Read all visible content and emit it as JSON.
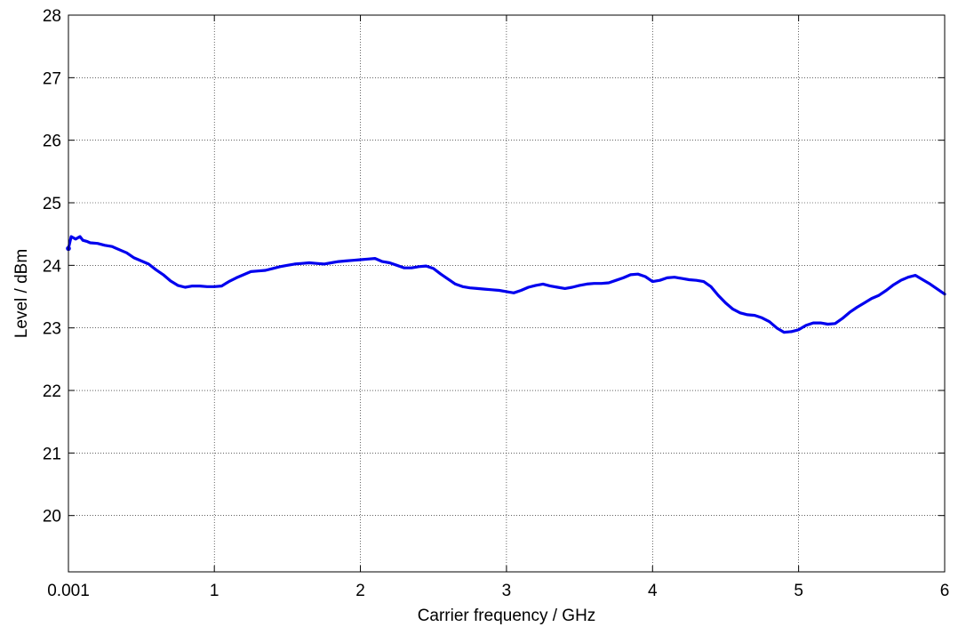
{
  "chart_data": {
    "type": "line",
    "xlabel": "Carrier frequency / GHz",
    "ylabel": "Level / dBm",
    "xlim": [
      0.001,
      6
    ],
    "ylim": [
      19.1,
      28
    ],
    "x_ticks": [
      0.001,
      1,
      2,
      3,
      4,
      5,
      6
    ],
    "x_tick_labels": [
      "0.001",
      "1",
      "2",
      "3",
      "4",
      "5",
      "6"
    ],
    "y_ticks": [
      20,
      21,
      22,
      23,
      24,
      25,
      26,
      27,
      28
    ],
    "y_tick_labels": [
      "20",
      "21",
      "22",
      "23",
      "24",
      "25",
      "26",
      "27",
      "28"
    ],
    "grid": true,
    "colors": {
      "line": "#0000ee",
      "grid": "#000000",
      "axis": "#000000"
    },
    "series": [
      {
        "x": [
          0.001,
          0.02,
          0.05,
          0.08,
          0.1,
          0.13,
          0.15,
          0.2,
          0.25,
          0.3,
          0.35,
          0.4,
          0.45,
          0.5,
          0.55,
          0.6,
          0.65,
          0.7,
          0.75,
          0.8,
          0.85,
          0.9,
          0.95,
          1.0,
          1.05,
          1.1,
          1.15,
          1.2,
          1.25,
          1.3,
          1.35,
          1.4,
          1.45,
          1.5,
          1.55,
          1.6,
          1.65,
          1.7,
          1.75,
          1.8,
          1.85,
          1.9,
          1.95,
          2.0,
          2.05,
          2.1,
          2.15,
          2.2,
          2.25,
          2.3,
          2.35,
          2.4,
          2.45,
          2.5,
          2.55,
          2.6,
          2.65,
          2.7,
          2.75,
          2.8,
          2.85,
          2.9,
          2.95,
          3.0,
          3.05,
          3.1,
          3.15,
          3.2,
          3.25,
          3.3,
          3.35,
          3.4,
          3.45,
          3.5,
          3.55,
          3.6,
          3.65,
          3.7,
          3.75,
          3.8,
          3.85,
          3.9,
          3.95,
          4.0,
          4.05,
          4.1,
          4.15,
          4.2,
          4.25,
          4.3,
          4.35,
          4.4,
          4.45,
          4.5,
          4.55,
          4.6,
          4.65,
          4.7,
          4.75,
          4.8,
          4.85,
          4.9,
          4.95,
          5.0,
          5.05,
          5.1,
          5.15,
          5.2,
          5.25,
          5.3,
          5.35,
          5.4,
          5.45,
          5.5,
          5.55,
          5.6,
          5.65,
          5.7,
          5.75,
          5.8,
          5.85,
          5.9,
          5.95,
          6.0
        ],
        "y": [
          24.27,
          24.46,
          24.42,
          24.46,
          24.4,
          24.38,
          24.36,
          24.35,
          24.32,
          24.3,
          24.25,
          24.2,
          24.12,
          24.07,
          24.02,
          23.93,
          23.85,
          23.75,
          23.68,
          23.65,
          23.67,
          23.67,
          23.66,
          23.66,
          23.67,
          23.74,
          23.8,
          23.85,
          23.9,
          23.91,
          23.92,
          23.95,
          23.98,
          24.0,
          24.02,
          24.03,
          24.04,
          24.03,
          24.02,
          24.04,
          24.06,
          24.07,
          24.08,
          24.09,
          24.1,
          24.11,
          24.06,
          24.04,
          24.0,
          23.96,
          23.96,
          23.98,
          23.99,
          23.95,
          23.86,
          23.78,
          23.7,
          23.66,
          23.64,
          23.63,
          23.62,
          23.61,
          23.6,
          23.58,
          23.56,
          23.6,
          23.65,
          23.68,
          23.7,
          23.67,
          23.65,
          23.63,
          23.65,
          23.68,
          23.7,
          23.71,
          23.71,
          23.72,
          23.76,
          23.8,
          23.85,
          23.86,
          23.82,
          23.74,
          23.76,
          23.8,
          23.81,
          23.79,
          23.77,
          23.76,
          23.74,
          23.66,
          23.52,
          23.4,
          23.3,
          23.24,
          23.21,
          23.2,
          23.16,
          23.1,
          23.0,
          22.93,
          22.94,
          22.97,
          23.04,
          23.08,
          23.08,
          23.06,
          23.07,
          23.15,
          23.25,
          23.33,
          23.4,
          23.47,
          23.52,
          23.6,
          23.69,
          23.76,
          23.81,
          23.84,
          23.77,
          23.7,
          23.62,
          23.54
        ]
      }
    ]
  }
}
